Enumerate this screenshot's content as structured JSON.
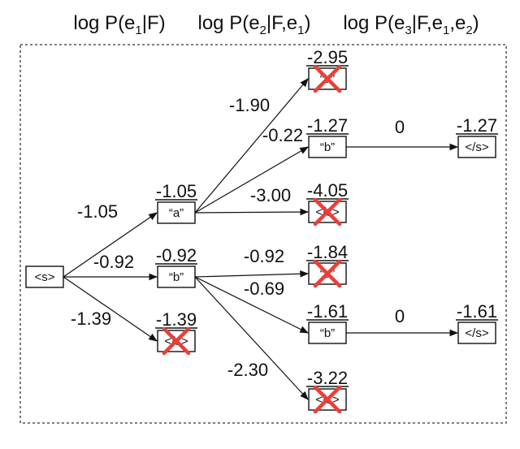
{
  "headers": [
    {
      "base": "log P(e",
      "parts": [
        {
          "t": "1",
          "sub": true
        },
        {
          "t": "|F)",
          "sub": false
        }
      ]
    },
    {
      "base": "log P(e",
      "parts": [
        {
          "t": "2",
          "sub": true
        },
        {
          "t": "|F,e",
          "sub": false
        },
        {
          "t": "1",
          "sub": true
        },
        {
          "t": ")",
          "sub": false
        }
      ]
    },
    {
      "base": "log P(e",
      "parts": [
        {
          "t": "3",
          "sub": true
        },
        {
          "t": "|F,e",
          "sub": false
        },
        {
          "t": "1",
          "sub": true
        },
        {
          "t": ",e",
          "sub": false
        },
        {
          "t": "2",
          "sub": true
        },
        {
          "t": ")",
          "sub": false
        }
      ]
    }
  ],
  "nodes": [
    {
      "id": "root",
      "label": "<s>",
      "score": "",
      "pruned": false
    },
    {
      "id": "a",
      "label": "“a”",
      "score": "-1.05",
      "pruned": false
    },
    {
      "id": "b",
      "label": "“b”",
      "score": "-0.92",
      "pruned": false
    },
    {
      "id": "end1",
      "label": "</s>",
      "score": "-1.39",
      "pruned": true
    },
    {
      "id": "aa",
      "label": "“a”",
      "score": "-2.95",
      "pruned": true
    },
    {
      "id": "ab",
      "label": "“b”",
      "score": "-1.27",
      "pruned": false
    },
    {
      "id": "aend",
      "label": "</s>",
      "score": "-4.05",
      "pruned": true
    },
    {
      "id": "ba",
      "label": "“a”",
      "score": "-1.84",
      "pruned": true
    },
    {
      "id": "bb",
      "label": "“b”",
      "score": "-1.61",
      "pruned": false
    },
    {
      "id": "bend",
      "label": "</s>",
      "score": "-3.22",
      "pruned": true
    },
    {
      "id": "abend",
      "label": "</s>",
      "score": "-1.27",
      "pruned": false
    },
    {
      "id": "bbend",
      "label": "</s>",
      "score": "-1.61",
      "pruned": false
    }
  ],
  "edges": [
    {
      "from": "root",
      "to": "a",
      "label": "-1.05"
    },
    {
      "from": "root",
      "to": "b",
      "label": "-0.92"
    },
    {
      "from": "root",
      "to": "end1",
      "label": "-1.39"
    },
    {
      "from": "a",
      "to": "aa",
      "label": "-1.90"
    },
    {
      "from": "a",
      "to": "ab",
      "label": "-0.22"
    },
    {
      "from": "a",
      "to": "aend",
      "label": "-3.00"
    },
    {
      "from": "b",
      "to": "ba",
      "label": "-0.92"
    },
    {
      "from": "b",
      "to": "bb",
      "label": "-0.69"
    },
    {
      "from": "b",
      "to": "bend",
      "label": "-2.30"
    },
    {
      "from": "ab",
      "to": "abend",
      "label": "0"
    },
    {
      "from": "bb",
      "to": "bbend",
      "label": "0"
    }
  ],
  "colors": {
    "ink": "#111111",
    "prune_mark": "#e8403a",
    "frame": "#333333"
  }
}
